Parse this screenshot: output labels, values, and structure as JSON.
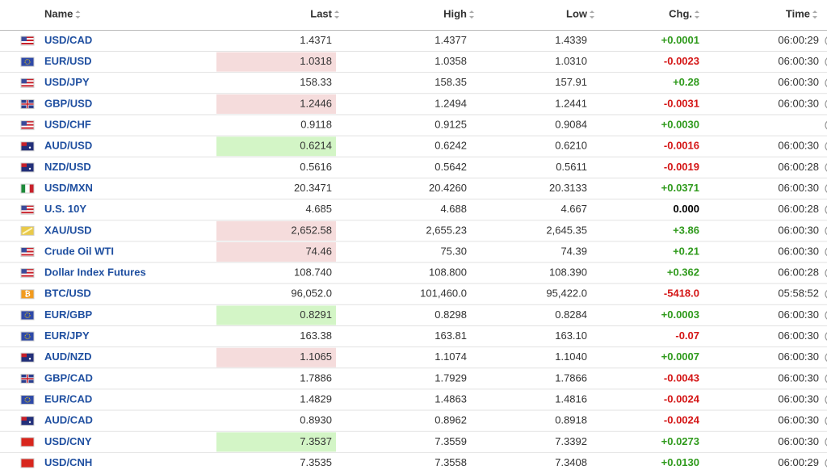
{
  "table": {
    "header": [
      "Name",
      "Last",
      "High",
      "Low",
      "Chg.",
      "Time"
    ],
    "rows": [
      [
        "USD/CAD",
        "1.4371",
        "1.4377",
        "1.4339",
        "+0.0001",
        "06:00:29"
      ],
      [
        "EUR/USD",
        "1.0318",
        "1.0358",
        "1.0310",
        "-0.0023",
        "06:00:30"
      ],
      [
        "USD/JPY",
        "158.33",
        "158.35",
        "157.91",
        "+0.28",
        "06:00:30"
      ],
      [
        "GBP/USD",
        "1.2446",
        "1.2494",
        "1.2441",
        "-0.0031",
        "06:00:30"
      ],
      [
        "USD/CHF",
        "0.9118",
        "0.9125",
        "0.9084",
        "+0.0030",
        null
      ],
      [
        "AUD/USD",
        "0.6214",
        "0.6242",
        "0.6210",
        "-0.0016",
        "06:00:30"
      ],
      [
        "NZD/USD",
        "0.5616",
        "0.5642",
        "0.5611",
        "-0.0019",
        "06:00:28"
      ],
      [
        "USD/MXN",
        "20.3471",
        "20.4260",
        "20.3133",
        "+0.0371",
        "06:00:30"
      ],
      [
        "U.S. 10Y",
        "4.685",
        "4.688",
        "4.667",
        "0.000",
        "06:00:28"
      ],
      [
        "XAU/USD",
        "2,652.58",
        "2,655.23",
        "2,645.35",
        "+3.86",
        "06:00:30"
      ],
      [
        "Crude Oil WTI",
        "74.46",
        "75.30",
        "74.39",
        "+0.21",
        "06:00:30"
      ],
      [
        "Dollar Index Futures",
        "108.740",
        "108.800",
        "108.390",
        "+0.362",
        "06:00:28"
      ],
      [
        "BTC/USD",
        "96,052.0",
        "101,460.0",
        "95,422.0",
        "-5418.0",
        "05:58:52"
      ],
      [
        "EUR/GBP",
        "0.8291",
        "0.8298",
        "0.8284",
        "+0.0003",
        "06:00:30"
      ],
      [
        "EUR/JPY",
        "163.38",
        "163.81",
        "163.10",
        "-0.07",
        "06:00:30"
      ],
      [
        "AUD/NZD",
        "1.1065",
        "1.1074",
        "1.1040",
        "+0.0007",
        "06:00:30"
      ],
      [
        "GBP/CAD",
        "1.7886",
        "1.7929",
        "1.7866",
        "-0.0043",
        "06:00:30"
      ],
      [
        "EUR/CAD",
        "1.4829",
        "1.4863",
        "1.4816",
        "-0.0024",
        "06:00:30"
      ],
      [
        "AUD/CAD",
        "0.8930",
        "0.8962",
        "0.8918",
        "-0.0024",
        "06:00:30"
      ],
      [
        "USD/CNY",
        "7.3537",
        "7.3559",
        "7.3392",
        "+0.0273",
        "06:00:30"
      ],
      [
        "USD/CNH",
        "7.3535",
        "7.3558",
        "7.3408",
        "+0.0130",
        "06:00:29"
      ]
    ]
  }
}
